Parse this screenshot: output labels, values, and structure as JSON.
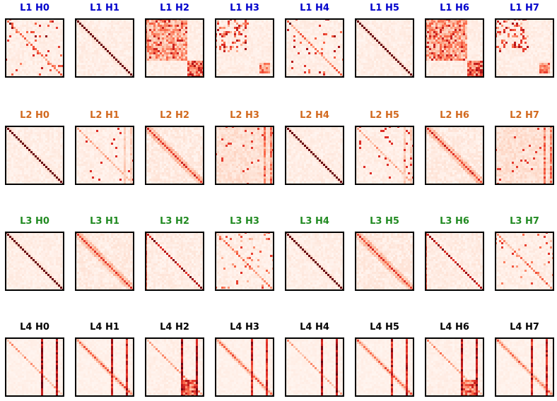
{
  "chart_data": {
    "type": "heatmap",
    "colormap": "Reds",
    "layer_colors": [
      "#0000cc",
      "#d2691e",
      "#228b22",
      "#000000"
    ],
    "panels": [
      {
        "title": "L1 H0",
        "layer": 1,
        "head": 0,
        "pattern": "scattered"
      },
      {
        "title": "L1 H1",
        "layer": 1,
        "head": 1,
        "pattern": "diagonal"
      },
      {
        "title": "L1 H2",
        "layer": 1,
        "head": 2,
        "pattern": "block"
      },
      {
        "title": "L1 H3",
        "layer": 1,
        "head": 3,
        "pattern": "block-sparse"
      },
      {
        "title": "L1 H4",
        "layer": 1,
        "head": 4,
        "pattern": "scattered"
      },
      {
        "title": "L1 H5",
        "layer": 1,
        "head": 5,
        "pattern": "diagonal"
      },
      {
        "title": "L1 H6",
        "layer": 1,
        "head": 6,
        "pattern": "block"
      },
      {
        "title": "L1 H7",
        "layer": 1,
        "head": 7,
        "pattern": "block-sparse"
      },
      {
        "title": "L2 H0",
        "layer": 2,
        "head": 0,
        "pattern": "diagonal"
      },
      {
        "title": "L2 H1",
        "layer": 2,
        "head": 1,
        "pattern": "scattered-columns"
      },
      {
        "title": "L2 H2",
        "layer": 2,
        "head": 2,
        "pattern": "diagonal-soft"
      },
      {
        "title": "L2 H3",
        "layer": 2,
        "head": 3,
        "pattern": "columns"
      },
      {
        "title": "L2 H4",
        "layer": 2,
        "head": 4,
        "pattern": "diagonal"
      },
      {
        "title": "L2 H5",
        "layer": 2,
        "head": 5,
        "pattern": "scattered-columns"
      },
      {
        "title": "L2 H6",
        "layer": 2,
        "head": 6,
        "pattern": "diagonal-soft"
      },
      {
        "title": "L2 H7",
        "layer": 2,
        "head": 7,
        "pattern": "columns"
      },
      {
        "title": "L3 H0",
        "layer": 3,
        "head": 0,
        "pattern": "diagonal"
      },
      {
        "title": "L3 H1",
        "layer": 3,
        "head": 1,
        "pattern": "diagonal-soft"
      },
      {
        "title": "L3 H2",
        "layer": 3,
        "head": 2,
        "pattern": "diagonal-column"
      },
      {
        "title": "L3 H3",
        "layer": 3,
        "head": 3,
        "pattern": "scattered-soft"
      },
      {
        "title": "L3 H4",
        "layer": 3,
        "head": 4,
        "pattern": "diagonal"
      },
      {
        "title": "L3 H5",
        "layer": 3,
        "head": 5,
        "pattern": "diagonal-soft"
      },
      {
        "title": "L3 H6",
        "layer": 3,
        "head": 6,
        "pattern": "diagonal-column"
      },
      {
        "title": "L3 H7",
        "layer": 3,
        "head": 7,
        "pattern": "scattered-soft"
      },
      {
        "title": "L4 H0",
        "layer": 4,
        "head": 0,
        "pattern": "twin-columns"
      },
      {
        "title": "L4 H1",
        "layer": 4,
        "head": 1,
        "pattern": "diagonal-twin-columns"
      },
      {
        "title": "L4 H2",
        "layer": 4,
        "head": 2,
        "pattern": "twin-columns-block"
      },
      {
        "title": "L4 H3",
        "layer": 4,
        "head": 3,
        "pattern": "diagonal-twin-columns"
      },
      {
        "title": "L4 H4",
        "layer": 4,
        "head": 4,
        "pattern": "twin-columns"
      },
      {
        "title": "L4 H5",
        "layer": 4,
        "head": 5,
        "pattern": "diagonal-twin-columns"
      },
      {
        "title": "L4 H6",
        "layer": 4,
        "head": 6,
        "pattern": "twin-columns-block"
      },
      {
        "title": "L4 H7",
        "layer": 4,
        "head": 7,
        "pattern": "diagonal-twin-columns"
      }
    ]
  }
}
